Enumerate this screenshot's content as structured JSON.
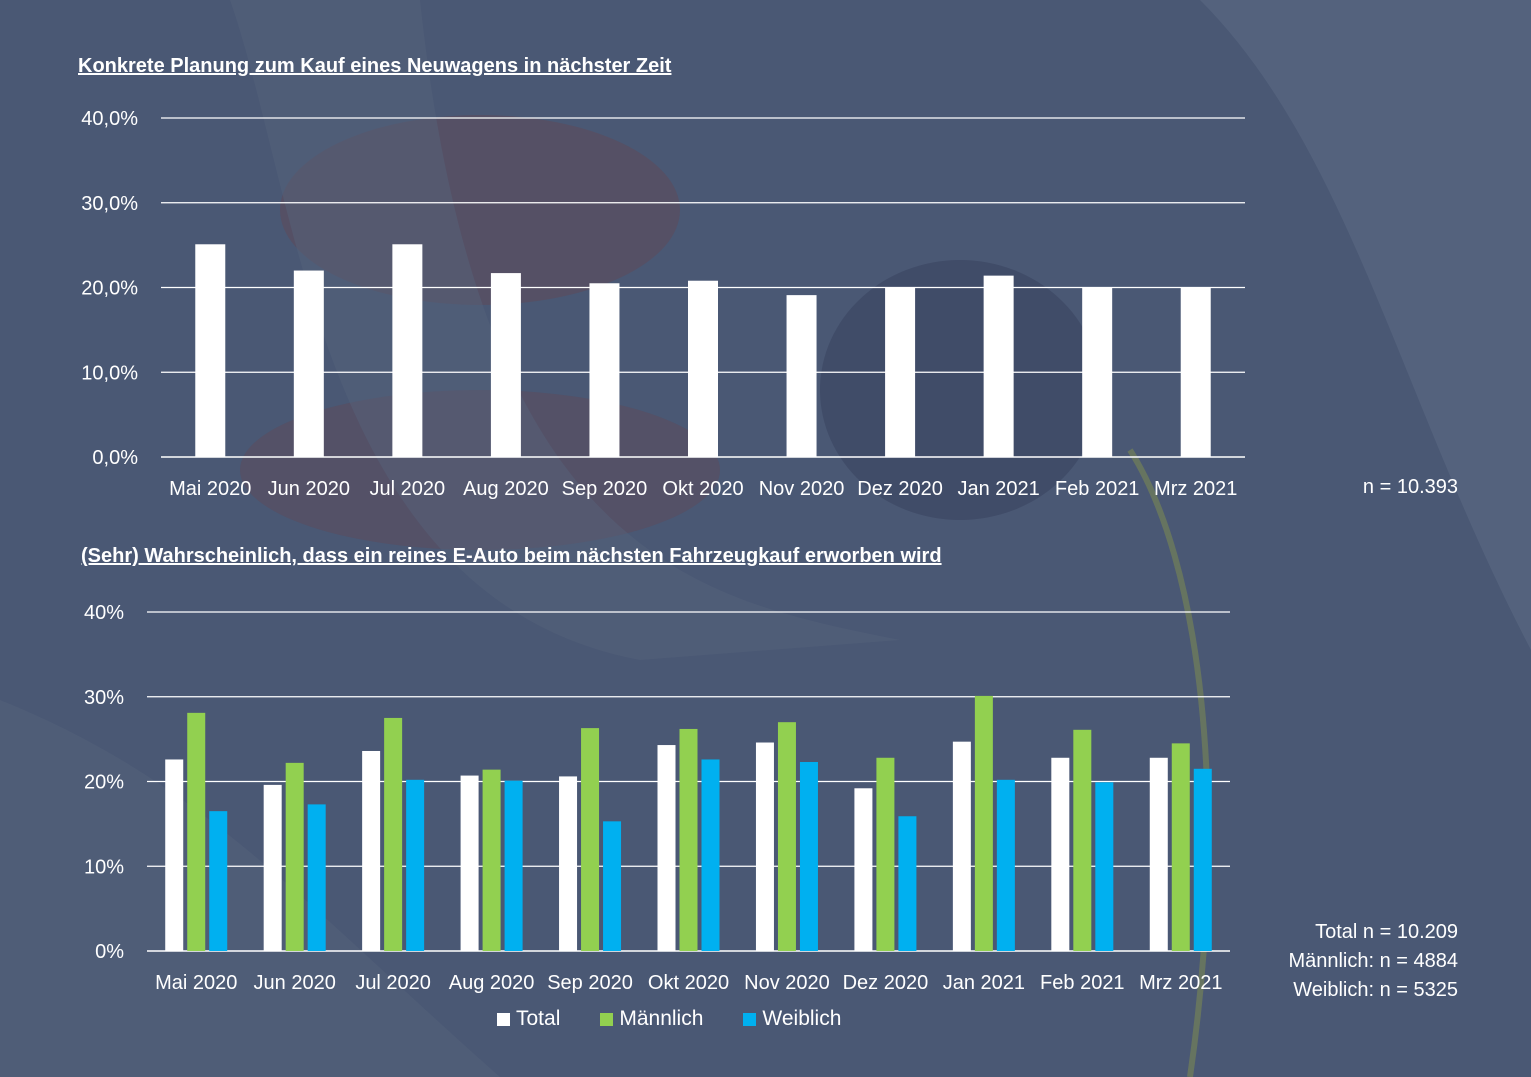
{
  "charts_text": {
    "title1": "Konkrete Planung zum Kauf eines Neuwagens in nächster Zeit",
    "title2": "(Sehr) Wahrscheinlich, dass ein reines E-Auto beim nächsten Fahrzeugkauf erworben wird",
    "note1": "n = 10.393",
    "note2_total": "Total n = 10.209",
    "note2_male": "Männlich: n = 4884",
    "note2_female": "Weiblich: n = 5325"
  },
  "colors": {
    "total": "#ffffff",
    "male": "#92d050",
    "female": "#00b0f0",
    "grid": "#ffffff",
    "background": "#4a5874"
  },
  "chart_data": [
    {
      "type": "bar",
      "title": "Konkrete Planung zum Kauf eines Neuwagens in nächster Zeit",
      "categories": [
        "Mai 2020",
        "Jun 2020",
        "Jul 2020",
        "Aug 2020",
        "Sep 2020",
        "Okt 2020",
        "Nov 2020",
        "Dez 2020",
        "Jan 2021",
        "Feb 2021",
        "Mrz 2021"
      ],
      "values": [
        25.1,
        22.0,
        25.1,
        21.7,
        20.5,
        20.8,
        19.1,
        20.0,
        21.4,
        20.0,
        20.0
      ],
      "ylim": [
        0,
        40
      ],
      "yticks": [
        "0,0%",
        "10,0%",
        "20,0%",
        "30,0%",
        "40,0%"
      ],
      "grid": true,
      "legend": "none"
    },
    {
      "type": "bar",
      "title": "(Sehr) Wahrscheinlich, dass ein reines E-Auto beim nächsten Fahrzeugkauf erworben wird",
      "categories": [
        "Mai 2020",
        "Jun 2020",
        "Jul 2020",
        "Aug 2020",
        "Sep 2020",
        "Okt 2020",
        "Nov 2020",
        "Dez 2020",
        "Jan 2021",
        "Feb 2021",
        "Mrz 2021"
      ],
      "series": [
        {
          "name": "Total",
          "values": [
            22.6,
            19.6,
            23.6,
            20.7,
            20.6,
            24.3,
            24.6,
            19.2,
            24.7,
            22.8,
            22.8
          ]
        },
        {
          "name": "Männlich",
          "values": [
            28.1,
            22.2,
            27.5,
            21.4,
            26.3,
            26.2,
            27.0,
            22.8,
            30.1,
            26.1,
            24.5
          ]
        },
        {
          "name": "Weiblich",
          "values": [
            16.5,
            17.3,
            20.2,
            20.1,
            15.3,
            22.6,
            22.3,
            15.9,
            20.2,
            19.9,
            21.5
          ]
        }
      ],
      "ylim": [
        0,
        40
      ],
      "yticks": [
        "0%",
        "10%",
        "20%",
        "30%",
        "40%"
      ],
      "grid": true,
      "legend": "bottom"
    }
  ]
}
